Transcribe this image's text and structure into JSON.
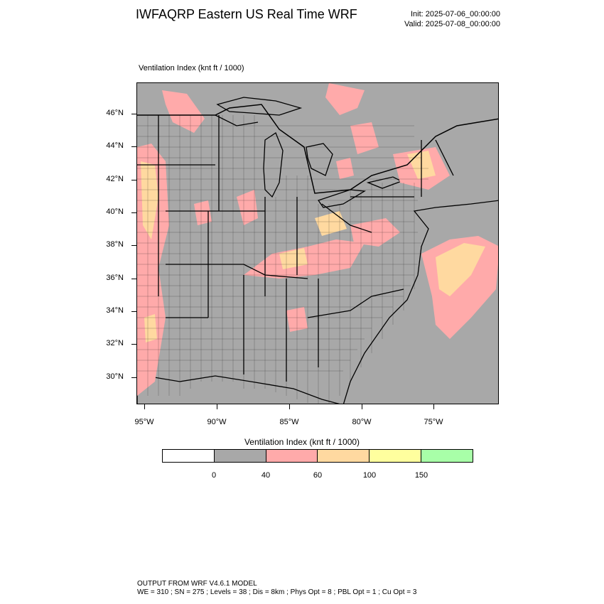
{
  "header": {
    "title": "IWFAQRP Eastern US Real Time WRF",
    "init": "Init: 2025-07-06_00:00:00",
    "valid": "Valid: 2025-07-08_00:00:00"
  },
  "plot": {
    "label": "Ventilation Index   (knt ft / 1000)",
    "lat_labels": [
      "46°N",
      "44°N",
      "42°N",
      "40°N",
      "38°N",
      "36°N",
      "34°N",
      "32°N",
      "30°N"
    ],
    "lon_labels": [
      "95°W",
      "90°W",
      "85°W",
      "80°W",
      "75°W"
    ]
  },
  "colorbar": {
    "title": "Ventilation Index  (knt ft / 1000)",
    "colors": [
      "#ffffff",
      "#a8a8a8",
      "#ffaaaa",
      "#ffd9a0",
      "#ffff9e",
      "#a8ffa8"
    ],
    "tick_labels": [
      "0",
      "40",
      "60",
      "100",
      "150"
    ]
  },
  "footer": {
    "line1": "OUTPUT FROM WRF V4.6.1 MODEL",
    "line2": "WE = 310 ; SN = 275 ; Levels = 38 ; Dis = 8km ; Phys Opt = 8 ; PBL Opt = 1 ; Cu Opt = 3"
  }
}
